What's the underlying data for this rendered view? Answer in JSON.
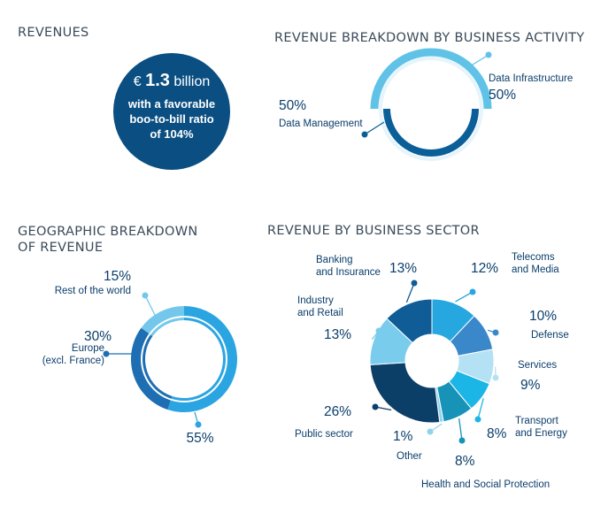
{
  "revenues": {
    "title": "REVENUES",
    "amount_prefix": "€",
    "amount_value": "1.3",
    "amount_unit": "billion",
    "line1": "with a favorable",
    "line2": "boo-to-bill ratio",
    "line3": "of 104%"
  },
  "colors": {
    "dark": "#0b4f82",
    "medium": "#1e73b4",
    "light": "#5fc2e6",
    "accent": "#22a9e1"
  },
  "chart_data": [
    {
      "type": "pie",
      "title": "REVENUE BREAKDOWN BY BUSINESS ACTIVITY",
      "slices": [
        {
          "name": "Data Infrastructure",
          "value": 50,
          "label": "50%",
          "color": "#5fc2e6"
        },
        {
          "name": "Data Management",
          "value": 50,
          "label": "50%",
          "color": "#0b5f99"
        }
      ]
    },
    {
      "type": "pie",
      "title_lines": [
        "GEOGRAPHIC BREAKDOWN",
        "OF REVENUE"
      ],
      "slices": [
        {
          "name_lines": [
            "Rest of the world"
          ],
          "value": 15,
          "label": "15%",
          "color": "#73c7ea"
        },
        {
          "name_lines": [
            "Europe",
            "(excl. France)"
          ],
          "value": 30,
          "label": "30%",
          "color": "#1d6eb2"
        },
        {
          "name_lines": [],
          "value": 55,
          "label": "55%",
          "color": "#2ba5e2"
        }
      ]
    },
    {
      "type": "pie",
      "title": "REVENUE BY BUSINESS SECTOR",
      "slices": [
        {
          "name_lines": [
            "Telecoms",
            "and Media"
          ],
          "value": 12,
          "label": "12%",
          "color": "#27a7e0"
        },
        {
          "name_lines": [
            "Defense"
          ],
          "value": 10,
          "label": "10%",
          "color": "#3a88c9"
        },
        {
          "name_lines": [
            "Services"
          ],
          "value": 9,
          "label": "9%",
          "color": "#b5e1f4"
        },
        {
          "name_lines": [
            "Transport",
            "and Energy"
          ],
          "value": 8,
          "label": "8%",
          "color": "#1bb6e6"
        },
        {
          "name_lines": [
            "Health and Social Protection"
          ],
          "value": 8,
          "label": "8%",
          "color": "#1793b8"
        },
        {
          "name_lines": [
            "Other"
          ],
          "value": 1,
          "label": "1%",
          "color": "#8fd3ef"
        },
        {
          "name_lines": [
            "Public sector"
          ],
          "value": 26,
          "label": "26%",
          "color": "#0c3f68"
        },
        {
          "name_lines": [
            "Industry",
            "and Retail"
          ],
          "value": 13,
          "label": "13%",
          "color": "#7accec"
        },
        {
          "name_lines": [
            "Banking",
            "and Insurance"
          ],
          "value": 13,
          "label": "13%",
          "color": "#0f5c96"
        }
      ]
    }
  ]
}
